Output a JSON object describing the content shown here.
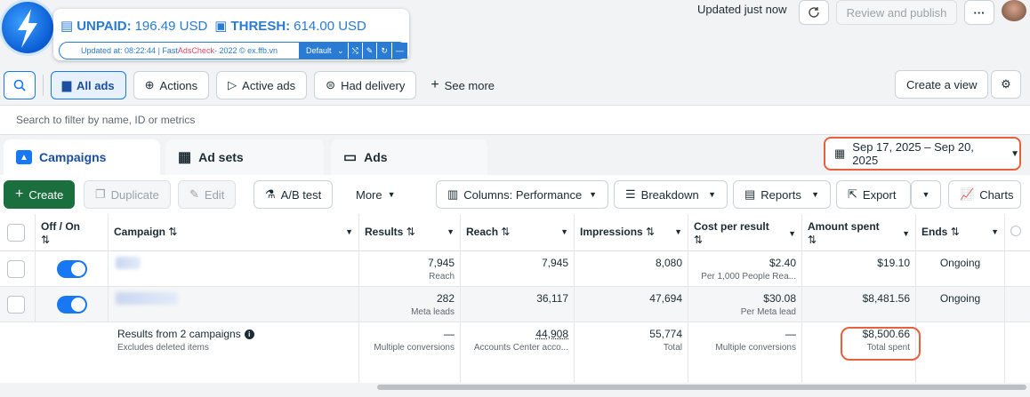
{
  "extension": {
    "unpaid_label": "UNPAID:",
    "unpaid_value": "196.49 USD",
    "thresh_label": "THRESH:",
    "thresh_value": "614.00 USD",
    "updated_text": "Updated at: 08:22:44 | Fast ",
    "brand": "AdsCheck",
    "credit": " - 2022 © ex.ffb.vn",
    "profile_select": "Default"
  },
  "header": {
    "updated": "Updated just now",
    "review_publish": "Review and publish",
    "more": "···"
  },
  "toolbar": {
    "all_ads": "All ads",
    "actions": "Actions",
    "active_ads": "Active ads",
    "had_delivery": "Had delivery",
    "see_more": "See more",
    "create_view": "Create a view"
  },
  "search": {
    "placeholder": "Search to filter by name, ID or metrics"
  },
  "tabs": {
    "campaigns": "Campaigns",
    "ad_sets": "Ad sets",
    "ads": "Ads"
  },
  "date_range": "Sep 17, 2025 – Sep 20, 2025",
  "actions": {
    "create": "Create",
    "duplicate": "Duplicate",
    "edit": "Edit",
    "ab_test": "A/B test",
    "more": "More",
    "columns": "Columns: Performance",
    "breakdown": "Breakdown",
    "reports": "Reports",
    "export": "Export",
    "charts": "Charts"
  },
  "table": {
    "headers": {
      "off_on": "Off / On",
      "campaign": "Campaign",
      "results": "Results",
      "reach": "Reach",
      "impressions": "Impressions",
      "cost_per_result": "Cost per result",
      "amount_spent": "Amount spent",
      "ends": "Ends"
    },
    "rows": [
      {
        "results": "7,945",
        "results_sub": "Reach",
        "reach": "7,945",
        "impressions": "8,080",
        "cost": "$2.40",
        "cost_sub": "Per 1,000 People Rea...",
        "spent": "$19.10",
        "ends": "Ongoing"
      },
      {
        "results": "282",
        "results_sub": "Meta leads",
        "reach": "36,117",
        "impressions": "47,694",
        "cost": "$30.08",
        "cost_sub": "Per Meta lead",
        "spent": "$8,481.56",
        "ends": "Ongoing"
      }
    ],
    "summary": {
      "title": "Results from 2 campaigns",
      "sub": "Excludes deleted items",
      "results": "—",
      "results_sub": "Multiple conversions",
      "reach": "44,908",
      "reach_sub": "Accounts Center acco...",
      "impressions": "55,774",
      "impressions_sub": "Total",
      "cost": "—",
      "cost_sub": "Multiple conversions",
      "spent": "$8,500.66",
      "spent_sub": "Total spent"
    }
  },
  "colors": {
    "accent": "#1877f2",
    "create_green": "#1b6e3d",
    "highlight": "#e8603c",
    "extension_blue": "#2a7bd4"
  }
}
